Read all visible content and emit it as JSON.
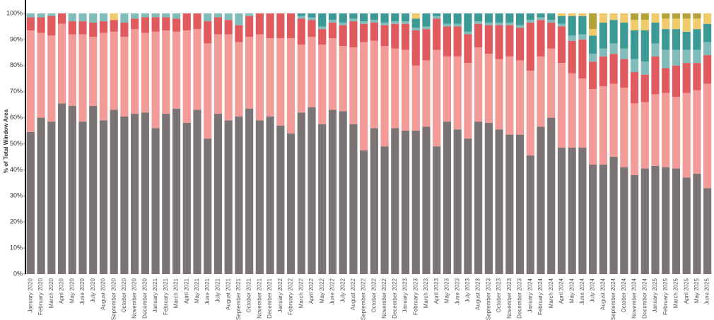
{
  "chart_data": {
    "type": "stacked_bar",
    "y_label": "% of Total Window Area",
    "categories": [
      "January 2020",
      "February 2020",
      "March 2020",
      "April 2020",
      "May 2020",
      "June 2020",
      "July 2020",
      "August 2020",
      "September 2020",
      "October 2020",
      "November 2020",
      "December 2020",
      "January 2021",
      "February 2021",
      "March 2021",
      "April 2021",
      "May 2021",
      "June 2021",
      "July 2021",
      "August 2021",
      "September 2021",
      "October 2021",
      "November 2021",
      "December 2021",
      "January 2022",
      "February 2022",
      "March 2022",
      "April 2022",
      "May 2022",
      "June 2022",
      "July 2022",
      "August 2022",
      "September 2022",
      "October 2022",
      "November 2022",
      "December 2022",
      "January 2023",
      "February 2023",
      "March 2023",
      "April 2023",
      "May 2023",
      "June 2023",
      "July 2023",
      "August 2023",
      "September 2023",
      "October 2023",
      "November 2023",
      "December 2023",
      "January 2024",
      "February 2024",
      "March 2024",
      "April 2024",
      "May 2024",
      "June 2024",
      "July 2024",
      "August 2024",
      "September 2024",
      "October 2024",
      "November 2024",
      "December 2024",
      "January 2025",
      "February 2025",
      "March 2025",
      "April 2025",
      "May 2025",
      "June 2025"
    ],
    "series": [
      {
        "color": "#7b7374",
        "values": [
          54.5,
          60,
          58.5,
          65.5,
          64.5,
          58.5,
          64.5,
          59,
          63,
          60.5,
          61.5,
          62,
          56,
          61.5,
          63.5,
          58,
          63,
          52,
          61.5,
          59,
          60.5,
          63.5,
          59,
          60.5,
          57,
          54,
          62,
          64,
          57.5,
          63,
          62.5,
          57.5,
          47.5,
          56,
          49,
          56,
          55,
          55,
          56.5,
          49,
          58.5,
          55.5,
          52,
          58.5,
          58,
          55.5,
          53.5,
          53.5,
          45.5,
          56.5,
          60,
          48.5,
          48.5,
          48.5,
          42,
          42,
          45,
          41,
          38,
          40.5,
          41.5,
          41,
          40.5,
          37,
          38.5,
          33
        ]
      },
      {
        "color": "#f29b98",
        "values": [
          39,
          32.5,
          33,
          30.5,
          27.5,
          33.5,
          26.5,
          33.5,
          30,
          30.5,
          32.5,
          30.5,
          37,
          32,
          29.5,
          35.5,
          31,
          36.5,
          30.5,
          33,
          28.5,
          27.5,
          33,
          30,
          33.5,
          36.5,
          26,
          27,
          30.5,
          27.5,
          25,
          29.5,
          41.5,
          33.5,
          38.5,
          30.5,
          31,
          25,
          25.5,
          37,
          25,
          28,
          29,
          28.5,
          26.5,
          27,
          30,
          28.5,
          32.5,
          27,
          26.5,
          32.5,
          28.5,
          26.5,
          29,
          30,
          28,
          30.5,
          27.5,
          25.5,
          27.5,
          28.5,
          27.5,
          32.5,
          32,
          40
        ]
      },
      {
        "color": "#e05a5e",
        "values": [
          5,
          6,
          7.5,
          4,
          5,
          5,
          5.5,
          4.5,
          4.5,
          5.5,
          4,
          6,
          5.5,
          5,
          5,
          6.5,
          6,
          8.5,
          6.5,
          5.5,
          6.5,
          8,
          8,
          9.5,
          9.5,
          9.5,
          10,
          6.5,
          6,
          6,
          8,
          10,
          7,
          7,
          8,
          9.5,
          10,
          13.5,
          12,
          12,
          11.5,
          11.5,
          11,
          9,
          11,
          13,
          12,
          12.5,
          18.5,
          14,
          10,
          14,
          12.5,
          15,
          10.5,
          11.5,
          11.5,
          11,
          12,
          10.5,
          14.5,
          9.5,
          12,
          11.5,
          10.5,
          11
        ]
      },
      {
        "color": "#7fbcba",
        "values": [
          1.5,
          1.5,
          1,
          0,
          3,
          3,
          3.5,
          3,
          0,
          3.5,
          2,
          1.5,
          1.5,
          1.5,
          2,
          0,
          0,
          3,
          1.5,
          2.5,
          4.5,
          1,
          0,
          0,
          0,
          0,
          1,
          1,
          1,
          1,
          1,
          1,
          1,
          1,
          1,
          1,
          1,
          1,
          1,
          1,
          1,
          1,
          1,
          1,
          1,
          1,
          1,
          1,
          1,
          1,
          1,
          1,
          2,
          2,
          3,
          3,
          4,
          4,
          5,
          5,
          5,
          7,
          6,
          5,
          5,
          5
        ]
      },
      {
        "color": "#3b9996",
        "values": [
          0,
          0,
          0,
          0,
          0,
          0,
          0,
          0,
          0,
          0,
          0,
          0,
          0,
          0,
          0,
          0,
          0,
          0,
          0,
          0,
          0,
          0,
          0,
          0,
          0,
          0,
          1,
          1.5,
          5,
          2.5,
          3.5,
          2,
          3,
          2.5,
          3.5,
          3,
          3,
          3.5,
          5,
          1,
          4,
          4,
          7,
          3,
          3.5,
          3.5,
          3.5,
          4.5,
          2.5,
          1.5,
          2.5,
          3,
          7.5,
          7,
          7,
          10,
          9,
          10,
          11,
          12,
          8,
          8,
          8,
          7,
          8,
          7
        ]
      },
      {
        "color": "#f1cb6b",
        "values": [
          0,
          0,
          0,
          0,
          0,
          0,
          0,
          0,
          2.5,
          0,
          0,
          0,
          0,
          0,
          0,
          0,
          0,
          0,
          0,
          0,
          0,
          0,
          0,
          0,
          0,
          0,
          0,
          0,
          0,
          0,
          0,
          0,
          0,
          0,
          0,
          0,
          0,
          2,
          0,
          0,
          0,
          0,
          0,
          0,
          0,
          0,
          0,
          0,
          0,
          0,
          0,
          1,
          1,
          1,
          2.5,
          3.5,
          2.5,
          3.5,
          4,
          4,
          3.5,
          4,
          4,
          5,
          4,
          4
        ]
      },
      {
        "color": "#b3a33a",
        "values": [
          0,
          0,
          0,
          0,
          0,
          0,
          0,
          0,
          0,
          0,
          0,
          0,
          0,
          0,
          0,
          0,
          0,
          0,
          0,
          0,
          0,
          0,
          0,
          0,
          0,
          0,
          0,
          0,
          0,
          0,
          0,
          0,
          0,
          0,
          0,
          0,
          0,
          0,
          0,
          0,
          0,
          0,
          0,
          0,
          0,
          0,
          0,
          0,
          0,
          0,
          0,
          0,
          0,
          0,
          6,
          0,
          0,
          0,
          2.5,
          2.5,
          0,
          2,
          2,
          2,
          2,
          0
        ]
      }
    ],
    "ylim": [
      0,
      100
    ],
    "yticks": [
      {
        "value": 0,
        "label": "0%"
      },
      {
        "value": 10,
        "label": "10%"
      },
      {
        "value": 20,
        "label": "20%"
      },
      {
        "value": 30,
        "label": "30%"
      },
      {
        "value": 40,
        "label": "40%"
      },
      {
        "value": 50,
        "label": "50%"
      },
      {
        "value": 60,
        "label": "60%"
      },
      {
        "value": 70,
        "label": "70%"
      },
      {
        "value": 80,
        "label": "80%"
      },
      {
        "value": 90,
        "label": "90%"
      },
      {
        "value": 100,
        "label": "100%"
      }
    ]
  }
}
